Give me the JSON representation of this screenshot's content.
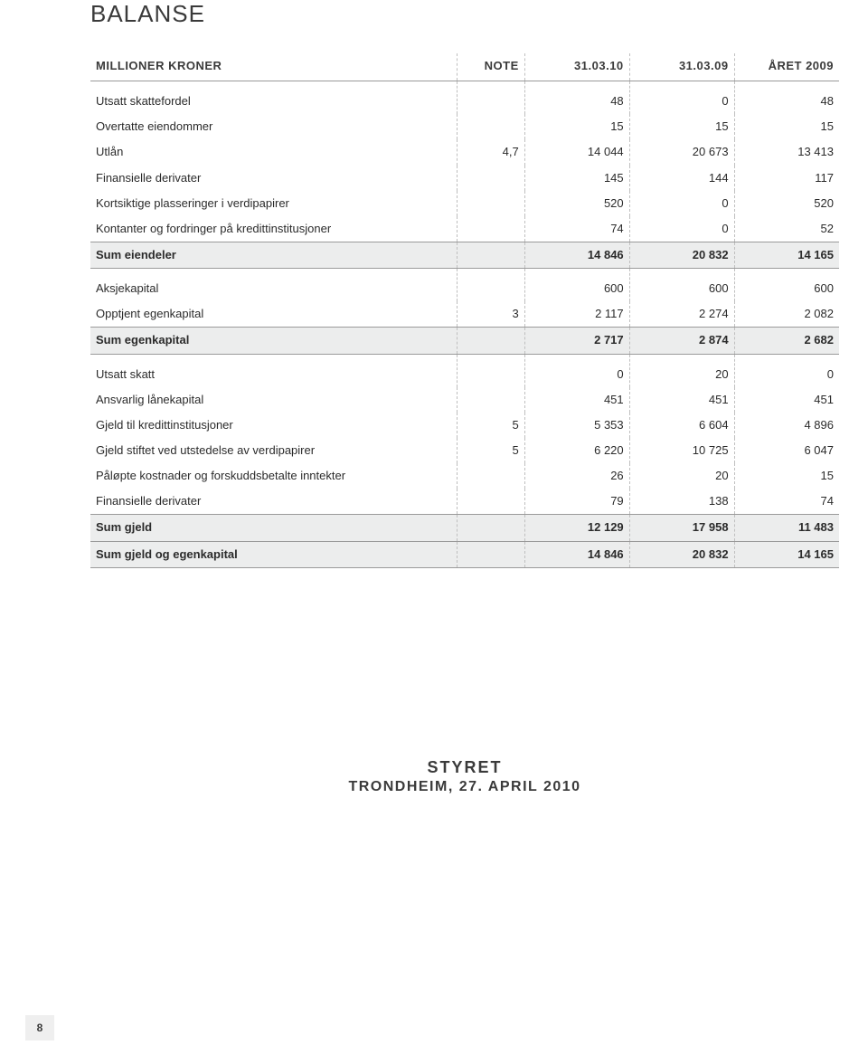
{
  "title": "BALANSE",
  "headers": {
    "label": "MILLIONER KRONER",
    "note": "NOTE",
    "c1": "31.03.10",
    "c2": "31.03.09",
    "c3": "ÅRET 2009"
  },
  "pageNumber": "8",
  "footer": {
    "line1": "STYRET",
    "line2": "TRONDHEIM, 27. APRIL 2010"
  },
  "colors": {
    "sumBg": "#eceded",
    "dashBorder": "#bfbfbf",
    "ruleBorder": "#9a9a9a",
    "text": "#2b2b2b"
  },
  "rows": [
    {
      "kind": "data",
      "first": true,
      "label": "Utsatt skattefordel",
      "note": "",
      "c1": "48",
      "c2": "0",
      "c3": "48"
    },
    {
      "kind": "data",
      "label": "Overtatte eiendommer",
      "note": "",
      "c1": "15",
      "c2": "15",
      "c3": "15"
    },
    {
      "kind": "data",
      "label": "Utlån",
      "note": "4,7",
      "c1": "14 044",
      "c2": "20 673",
      "c3": "13 413"
    },
    {
      "kind": "data",
      "label": "Finansielle derivater",
      "note": "",
      "c1": "145",
      "c2": "144",
      "c3": "117"
    },
    {
      "kind": "data",
      "label": "Kortsiktige plasseringer i verdipapirer",
      "note": "",
      "c1": "520",
      "c2": "0",
      "c3": "520"
    },
    {
      "kind": "data",
      "label": "Kontanter og fordringer på kredittinstitusjoner",
      "note": "",
      "c1": "74",
      "c2": "0",
      "c3": "52"
    },
    {
      "kind": "sum",
      "label": "Sum eiendeler",
      "note": "",
      "c1": "14 846",
      "c2": "20 832",
      "c3": "14 165"
    },
    {
      "kind": "data",
      "first": true,
      "label": "Aksjekapital",
      "note": "",
      "c1": "600",
      "c2": "600",
      "c3": "600"
    },
    {
      "kind": "data",
      "label": "Opptjent egenkapital",
      "note": "3",
      "c1": "2 117",
      "c2": "2 274",
      "c3": "2 082"
    },
    {
      "kind": "sum",
      "label": "Sum egenkapital",
      "note": "",
      "c1": "2 717",
      "c2": "2 874",
      "c3": "2 682"
    },
    {
      "kind": "data",
      "first": true,
      "label": "Utsatt skatt",
      "note": "",
      "c1": "0",
      "c2": "20",
      "c3": "0"
    },
    {
      "kind": "data",
      "label": "Ansvarlig lånekapital",
      "note": "",
      "c1": "451",
      "c2": "451",
      "c3": "451"
    },
    {
      "kind": "data",
      "label": "Gjeld til kredittinstitusjoner",
      "note": "5",
      "c1": "5 353",
      "c2": "6 604",
      "c3": "4 896"
    },
    {
      "kind": "data",
      "label": "Gjeld stiftet ved utstedelse av verdipapirer",
      "note": "5",
      "c1": "6 220",
      "c2": "10 725",
      "c3": "6 047"
    },
    {
      "kind": "data",
      "label": "Påløpte kostnader og forskuddsbetalte inntekter",
      "note": "",
      "c1": "26",
      "c2": "20",
      "c3": "15"
    },
    {
      "kind": "data",
      "label": "Finansielle derivater",
      "note": "",
      "c1": "79",
      "c2": "138",
      "c3": "74"
    },
    {
      "kind": "sum",
      "label": "Sum gjeld",
      "note": "",
      "c1": "12 129",
      "c2": "17 958",
      "c3": "11 483"
    },
    {
      "kind": "grand",
      "label": "Sum gjeld og egenkapital",
      "note": "",
      "c1": "14 846",
      "c2": "20 832",
      "c3": "14 165"
    }
  ]
}
